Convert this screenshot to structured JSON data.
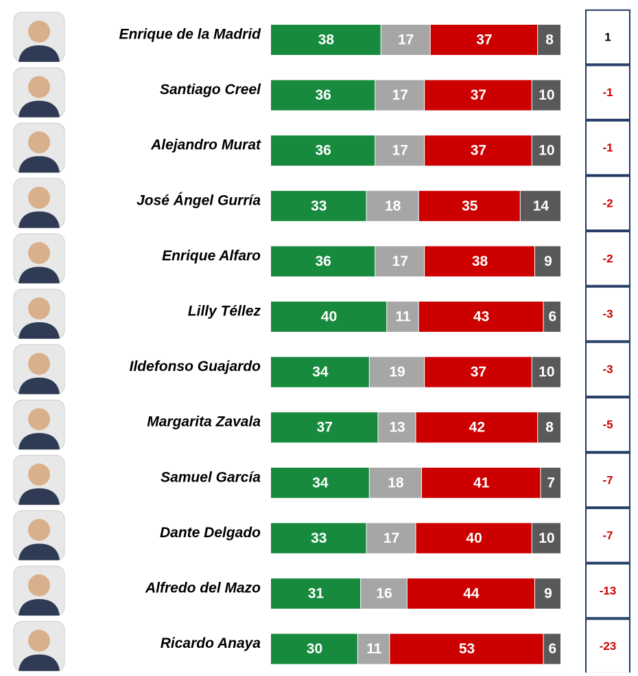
{
  "chart_data": {
    "type": "bar",
    "categories": [
      "Enrique de la Madrid",
      "Santiago Creel",
      "Alejandro Murat",
      "José Ángel Gurría",
      "Enrique Alfaro",
      "Lilly Téllez",
      "Ildefonso Guajardo",
      "Margarita Zavala",
      "Samuel García",
      "Dante Delgado",
      "Alfredo del Mazo",
      "Ricardo Anaya"
    ],
    "series": [
      {
        "color": "#178a3e",
        "values": [
          38,
          36,
          36,
          33,
          36,
          40,
          34,
          37,
          34,
          33,
          31,
          30
        ]
      },
      {
        "color": "#a6a6a6",
        "values": [
          17,
          17,
          17,
          18,
          17,
          11,
          19,
          13,
          18,
          17,
          16,
          11
        ]
      },
      {
        "color": "#cc0000",
        "values": [
          37,
          37,
          37,
          35,
          38,
          43,
          37,
          42,
          41,
          40,
          44,
          53
        ]
      },
      {
        "color": "#595959",
        "values": [
          8,
          10,
          10,
          14,
          9,
          6,
          10,
          8,
          7,
          10,
          9,
          6
        ]
      }
    ],
    "net": [
      1,
      -1,
      -1,
      -2,
      -2,
      -3,
      -3,
      -5,
      -7,
      -7,
      -13,
      -23
    ],
    "xlim": [
      0,
      100
    ]
  }
}
